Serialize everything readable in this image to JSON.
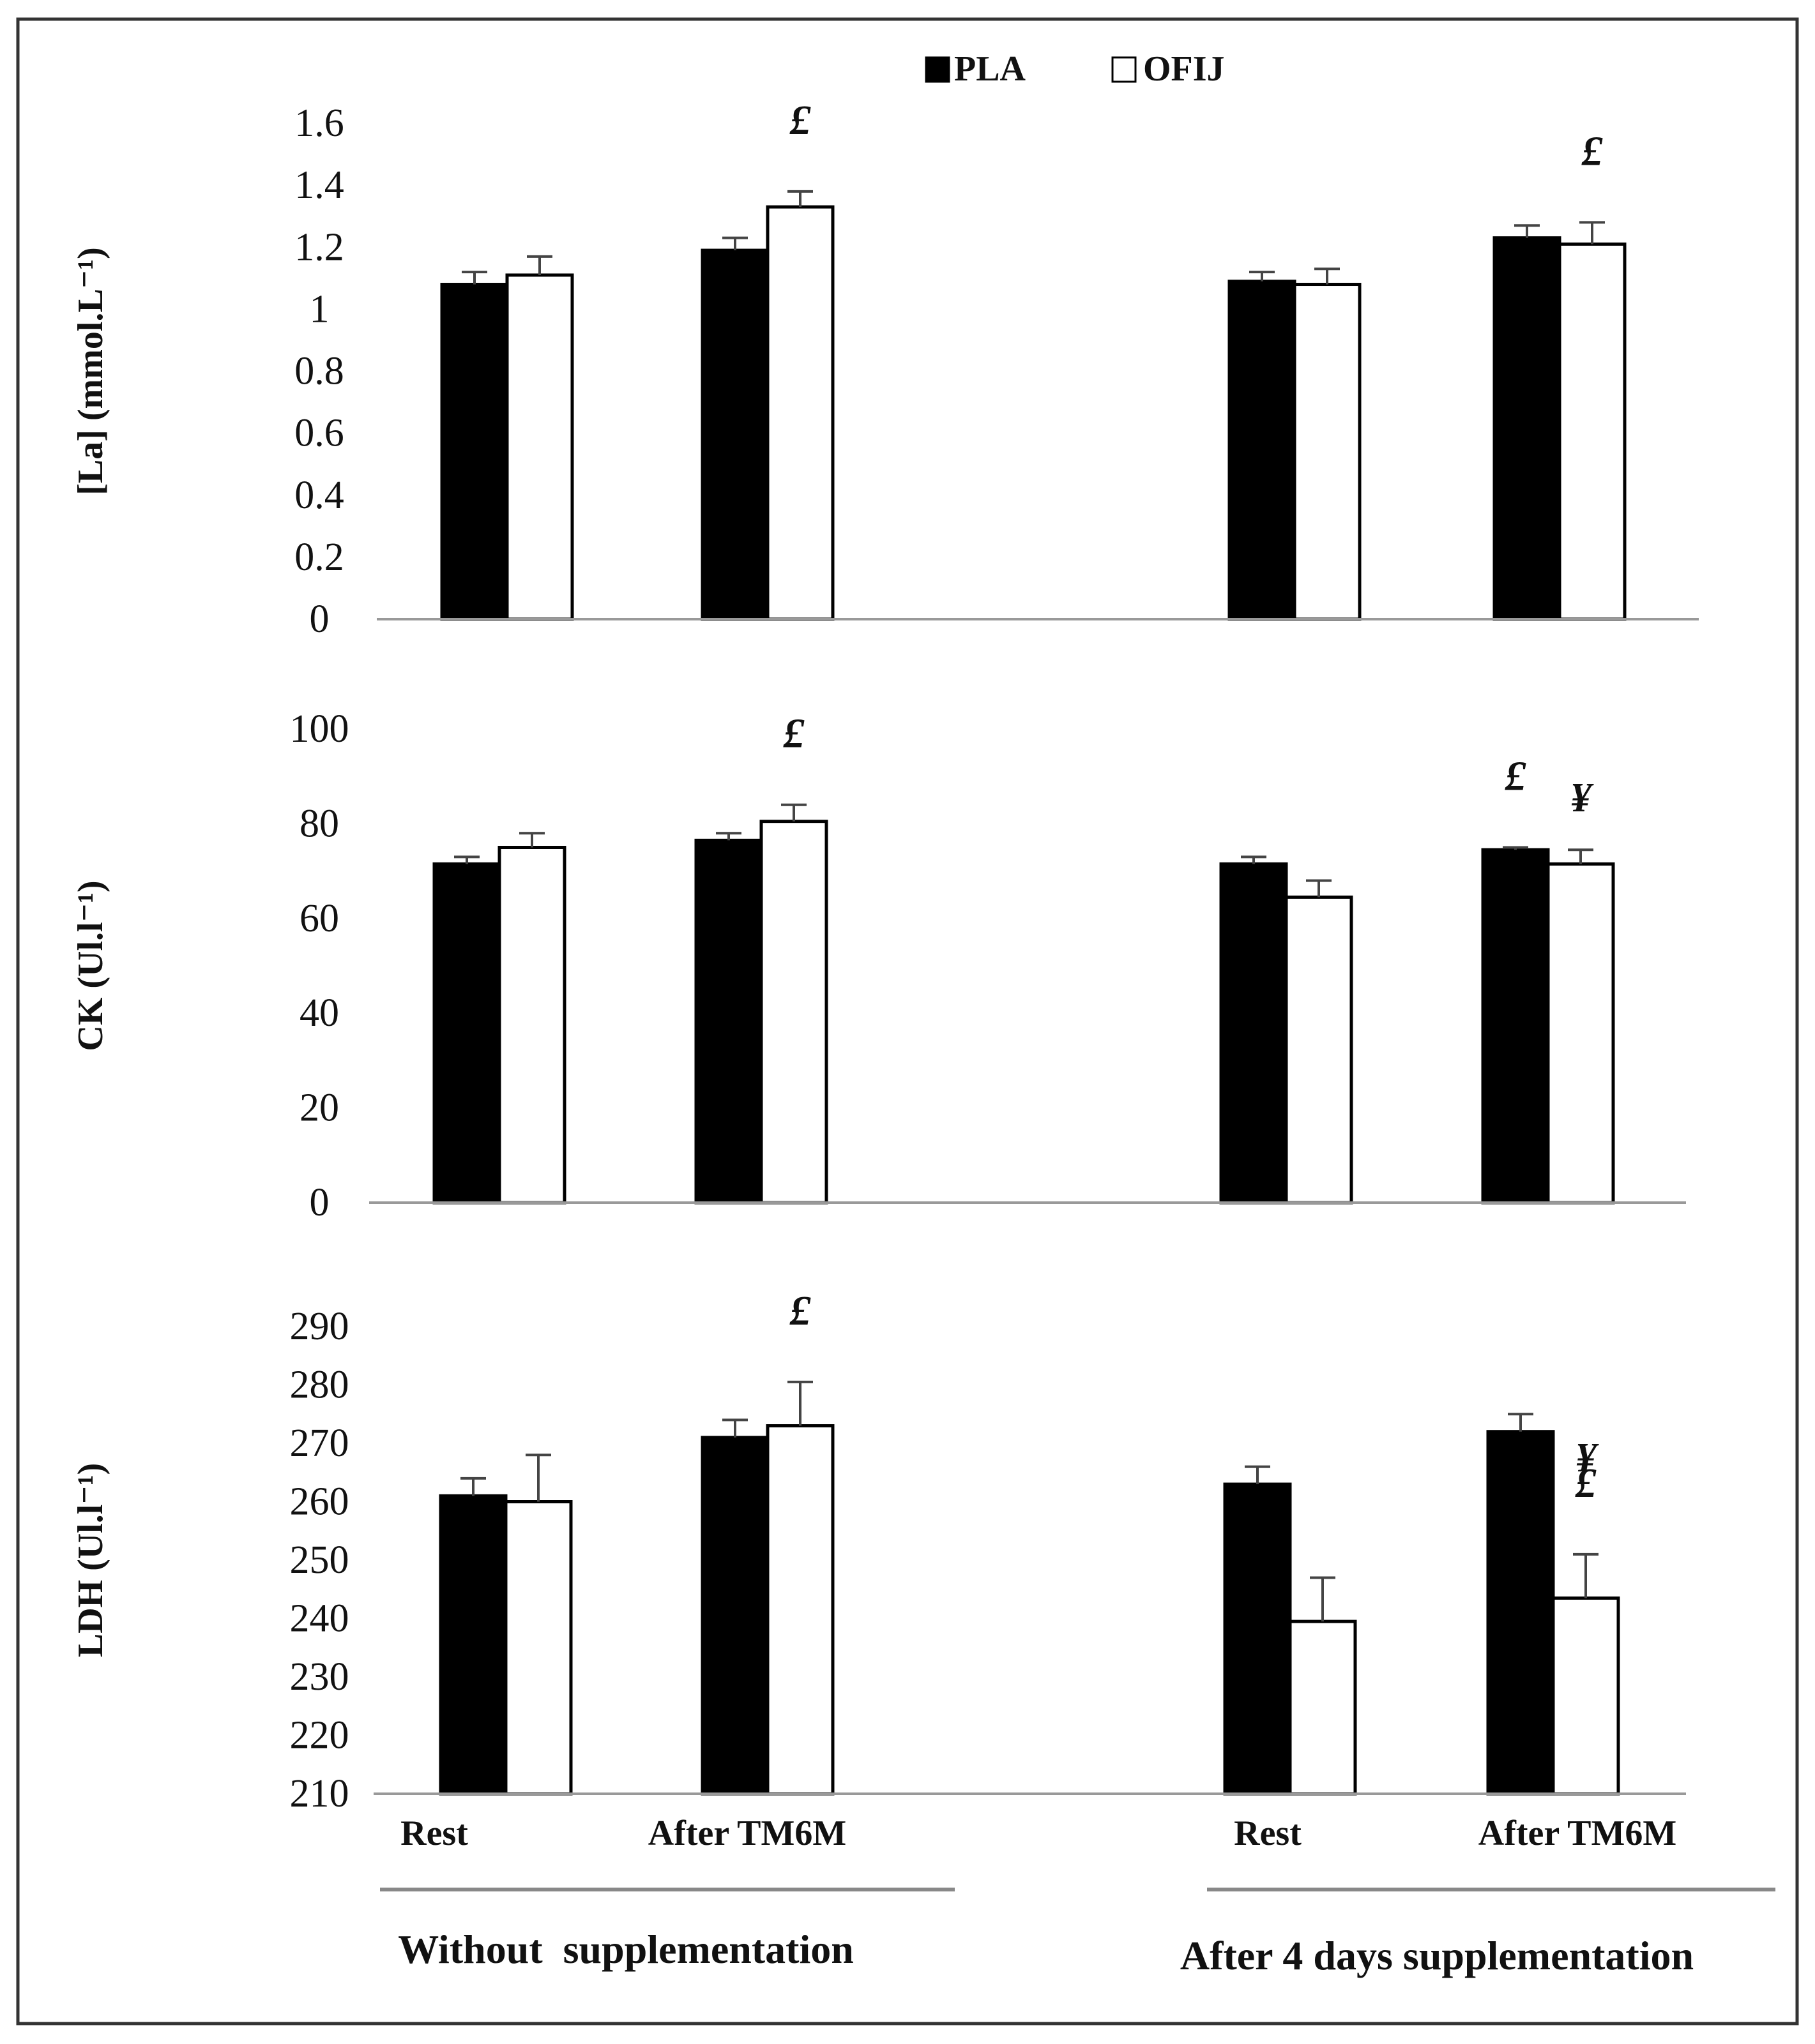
{
  "chart_data": [
    {
      "type": "bar",
      "panel": "top",
      "ylabel": "[La] (mmol.L⁻¹)",
      "ylim": [
        0,
        1.6
      ],
      "yticks": [
        "0",
        "0.2",
        "0.4",
        "0.6",
        "0.8",
        "1",
        "1.2",
        "1.4",
        "1.6"
      ],
      "categories": [
        "Rest",
        "After TM6M",
        "Rest",
        "After TM6M"
      ],
      "series": [
        {
          "name": "PLA",
          "values": [
            1.08,
            1.19,
            1.09,
            1.23
          ],
          "errors": [
            0.04,
            0.04,
            0.03,
            0.04
          ]
        },
        {
          "name": "OFIJ",
          "values": [
            1.11,
            1.33,
            1.08,
            1.21
          ],
          "errors": [
            0.06,
            0.05,
            0.05,
            0.07
          ]
        }
      ],
      "annotations": [
        {
          "category": 1,
          "series": "OFIJ",
          "text": "£"
        },
        {
          "category": 3,
          "series": "OFIJ",
          "text": "£"
        }
      ]
    },
    {
      "type": "bar",
      "panel": "middle",
      "ylabel": "CK (Ul.l⁻¹)",
      "ylim": [
        0,
        100
      ],
      "yticks": [
        "0",
        "20",
        "40",
        "60",
        "80",
        "100"
      ],
      "categories": [
        "Rest",
        "After TM6M",
        "Rest",
        "After TM6M"
      ],
      "series": [
        {
          "name": "PLA",
          "values": [
            71.5,
            76.5,
            71.5,
            74.5
          ],
          "errors": [
            1.5,
            1.5,
            1.5,
            0.5
          ]
        },
        {
          "name": "OFIJ",
          "values": [
            75,
            80.5,
            64.5,
            71.5
          ],
          "errors": [
            3,
            3.5,
            3.5,
            3
          ]
        }
      ],
      "annotations": [
        {
          "category": 1,
          "series": "OFIJ",
          "text": "£"
        },
        {
          "category": 3,
          "series": "PLA",
          "text": "£"
        },
        {
          "category": 3,
          "series": "OFIJ",
          "text": "¥"
        }
      ]
    },
    {
      "type": "bar",
      "panel": "bottom",
      "ylabel": "LDH (Ul.l⁻¹)",
      "ylim": [
        210,
        290
      ],
      "yticks": [
        "210",
        "220",
        "230",
        "240",
        "250",
        "260",
        "270",
        "280",
        "290"
      ],
      "categories": [
        "Rest",
        "After TM6M",
        "Rest",
        "After TM6M"
      ],
      "series": [
        {
          "name": "PLA",
          "values": [
            261,
            271,
            263,
            272
          ],
          "errors": [
            3,
            3,
            3,
            3
          ]
        },
        {
          "name": "OFIJ",
          "values": [
            260,
            273,
            239.5,
            243.5
          ],
          "errors": [
            8,
            7.5,
            7.5,
            7.5
          ]
        }
      ],
      "annotations": [
        {
          "category": 1,
          "series": "OFIJ",
          "text": "£"
        },
        {
          "category": 3,
          "series": "OFIJ",
          "text": "£"
        },
        {
          "category": 3,
          "series": "OFIJ",
          "text": "¥"
        }
      ]
    }
  ],
  "legend": {
    "items": [
      {
        "name": "PLA",
        "color": "#000000"
      },
      {
        "name": "OFIJ",
        "color": "#ffffff"
      }
    ]
  },
  "groups": [
    {
      "label": "Without  supplementation",
      "categories": [
        "Rest",
        "After TM6M"
      ]
    },
    {
      "label": "After 4 days supplementation",
      "categories": [
        "Rest",
        "After TM6M"
      ]
    }
  ],
  "colors": {
    "pla": "#000000",
    "ofij": "#ffffff",
    "frame": "#333333",
    "axis": "#999999"
  }
}
